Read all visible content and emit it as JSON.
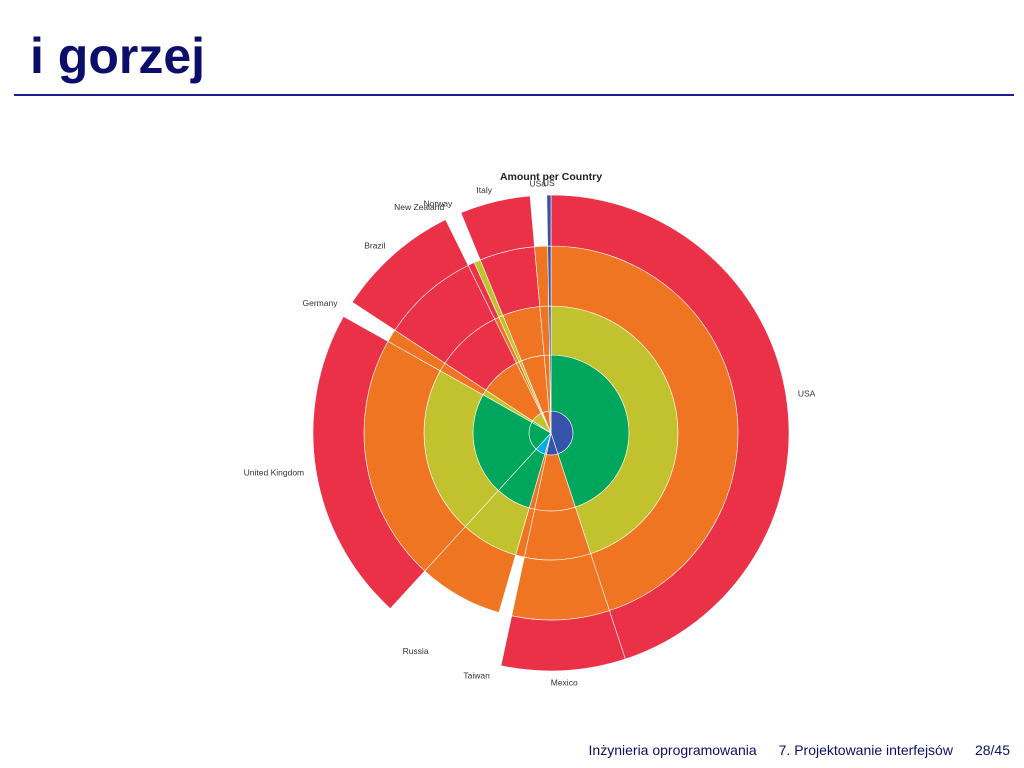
{
  "slide": {
    "title": "i gorzej"
  },
  "footer": {
    "course": "Inżynieria oprogramowania",
    "lecture": "7. Projektowanie interfejsów",
    "page": "28/45"
  },
  "colors": {
    "accent": "#0b0f6b",
    "rule": "#1a1f8c",
    "level_colors": [
      "#3553a8",
      "#00a65c",
      "#c2c22e",
      "#f07522",
      "#eb3147"
    ],
    "cyan": "#00aeef"
  },
  "chart_data": {
    "type": "pie",
    "subtype": "multi-level sunburst",
    "title": "Amount per Country",
    "levels": 5,
    "categories": [
      "USA",
      "Mexico",
      "Taiwan",
      "Russia",
      "United Kingdom",
      "Germany",
      "Brazil",
      "New Zealand",
      "Norway",
      "Italy",
      "USa",
      "US"
    ],
    "values": [
      160,
      30,
      4,
      26,
      76,
      4,
      30,
      2,
      2,
      17,
      4,
      1
    ],
    "depth": [
      5,
      5,
      3,
      4,
      5,
      4,
      5,
      4,
      4,
      5,
      4,
      5
    ],
    "segments": [
      {
        "country": "USA",
        "value": 160,
        "levels": [
          "blue",
          "green",
          "yellow",
          "orange",
          "red"
        ]
      },
      {
        "country": "Mexico",
        "value": 30,
        "levels": [
          "blue",
          "orange",
          "orange",
          "orange",
          "red"
        ]
      },
      {
        "country": "Taiwan",
        "value": 4,
        "levels": [
          "orange",
          "orange",
          "orange"
        ]
      },
      {
        "country": "Russia",
        "value": 26,
        "levels": [
          "cyan",
          "green",
          "yellow",
          "orange"
        ]
      },
      {
        "country": "United Kingdom",
        "value": 76,
        "levels": [
          "green",
          "green",
          "yellow",
          "orange",
          "red"
        ]
      },
      {
        "country": "Germany",
        "value": 4,
        "levels": [
          "green",
          "yellow",
          "orange",
          "orange"
        ]
      },
      {
        "country": "Brazil",
        "value": 30,
        "levels": [
          "yellow",
          "orange",
          "red",
          "red",
          "red"
        ]
      },
      {
        "country": "New Zealand",
        "value": 2,
        "levels": [
          "orange",
          "orange",
          "orange",
          "red"
        ]
      },
      {
        "country": "Norway",
        "value": 2,
        "levels": [
          "yellow",
          "yellow",
          "yellow",
          "yellow"
        ]
      },
      {
        "country": "Italy",
        "value": 17,
        "levels": [
          "orange",
          "orange",
          "orange",
          "red",
          "red"
        ]
      },
      {
        "country": "USa",
        "value": 4,
        "levels": [
          "orange",
          "orange",
          "orange",
          "orange"
        ]
      },
      {
        "country": "US",
        "value": 1,
        "levels": [
          "blue",
          "blue",
          "blue",
          "blue",
          "blue"
        ]
      }
    ]
  }
}
